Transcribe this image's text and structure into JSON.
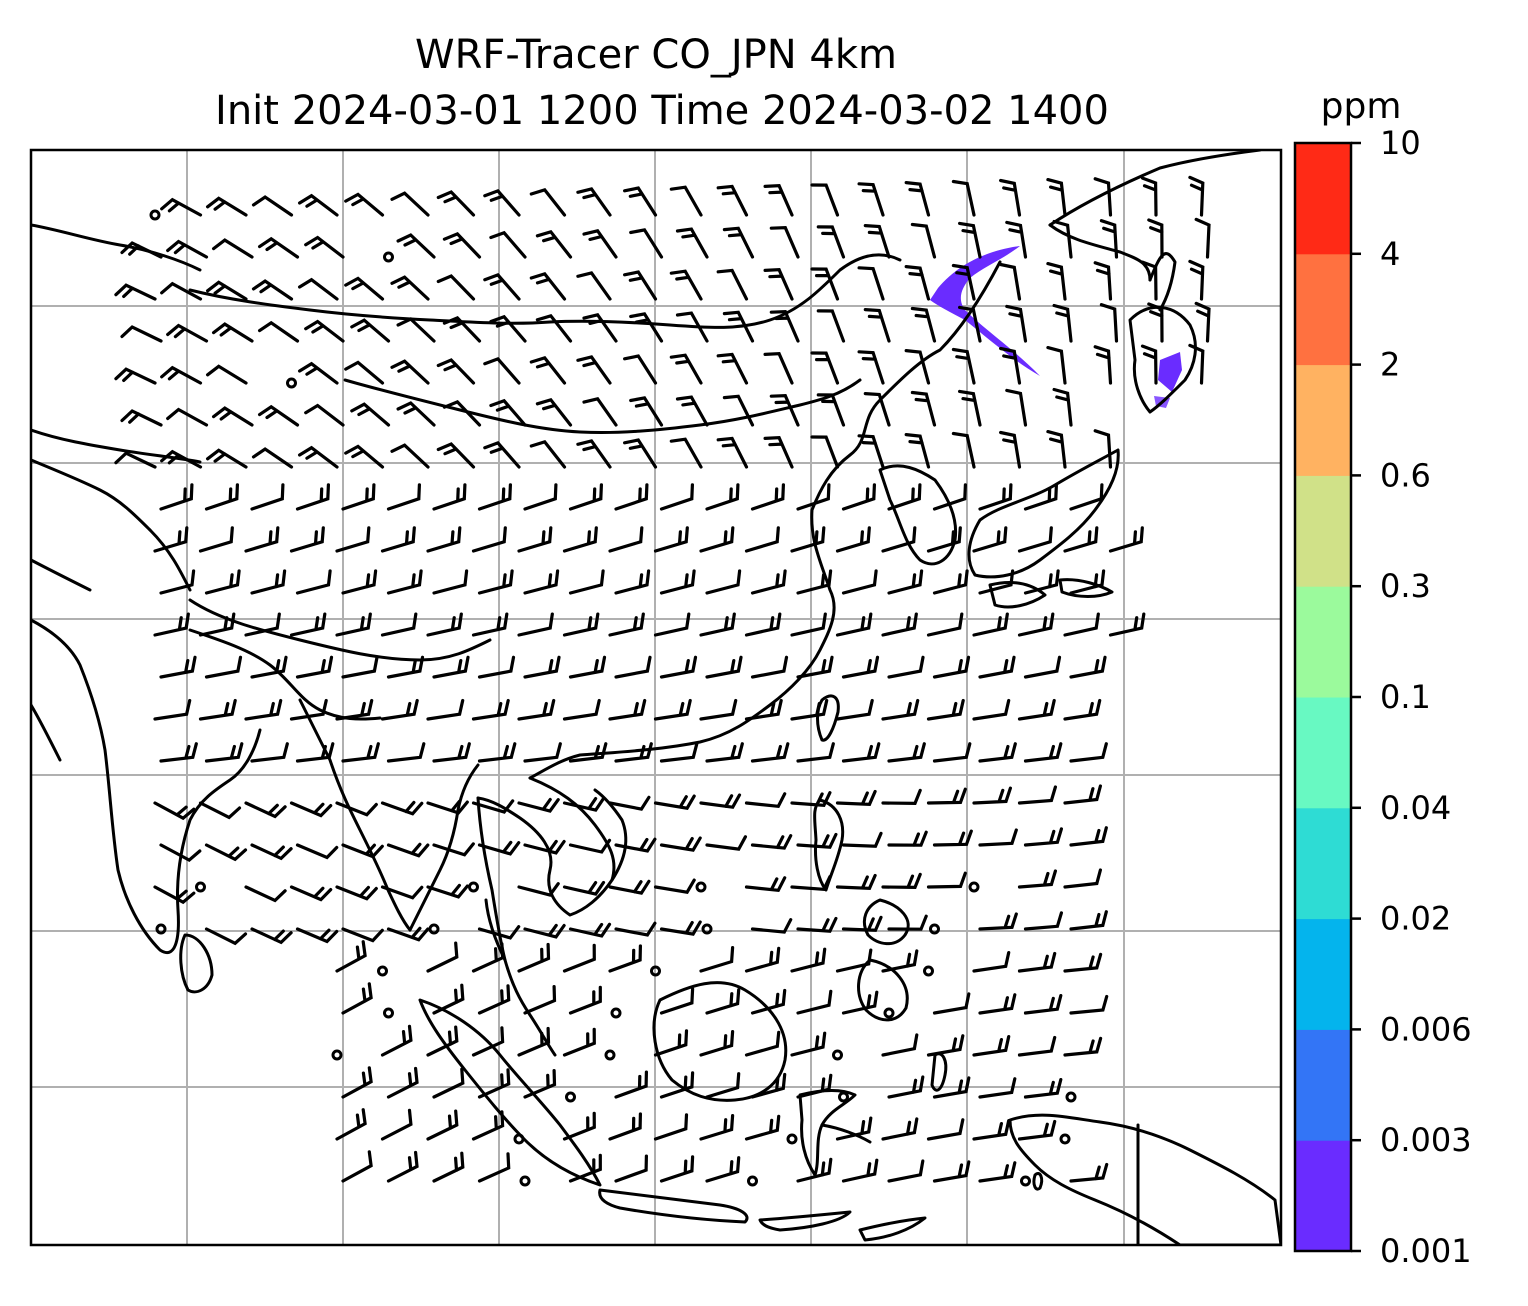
{
  "title": {
    "line1": "WRF-Tracer CO_JPN 4km",
    "line2": "Init 2024-03-01 1200 Time 2024-03-02 1400"
  },
  "colorbar": {
    "unit": "ppm",
    "ticks": [
      "0.001",
      "0.003",
      "0.006",
      "0.02",
      "0.04",
      "0.1",
      "0.3",
      "0.6",
      "2",
      "4",
      "10"
    ],
    "colors": [
      "#6a2cff",
      "#3375f6",
      "#04b4ed",
      "#2edcd4",
      "#68f9c2",
      "#9bfa9c",
      "#d0e188",
      "#ffb261",
      "#ff7140",
      "#ff2a16"
    ]
  },
  "map": {
    "gridlines": true,
    "features": [
      "coastlines",
      "wind-barbs",
      "co-tracer-plume"
    ]
  }
}
